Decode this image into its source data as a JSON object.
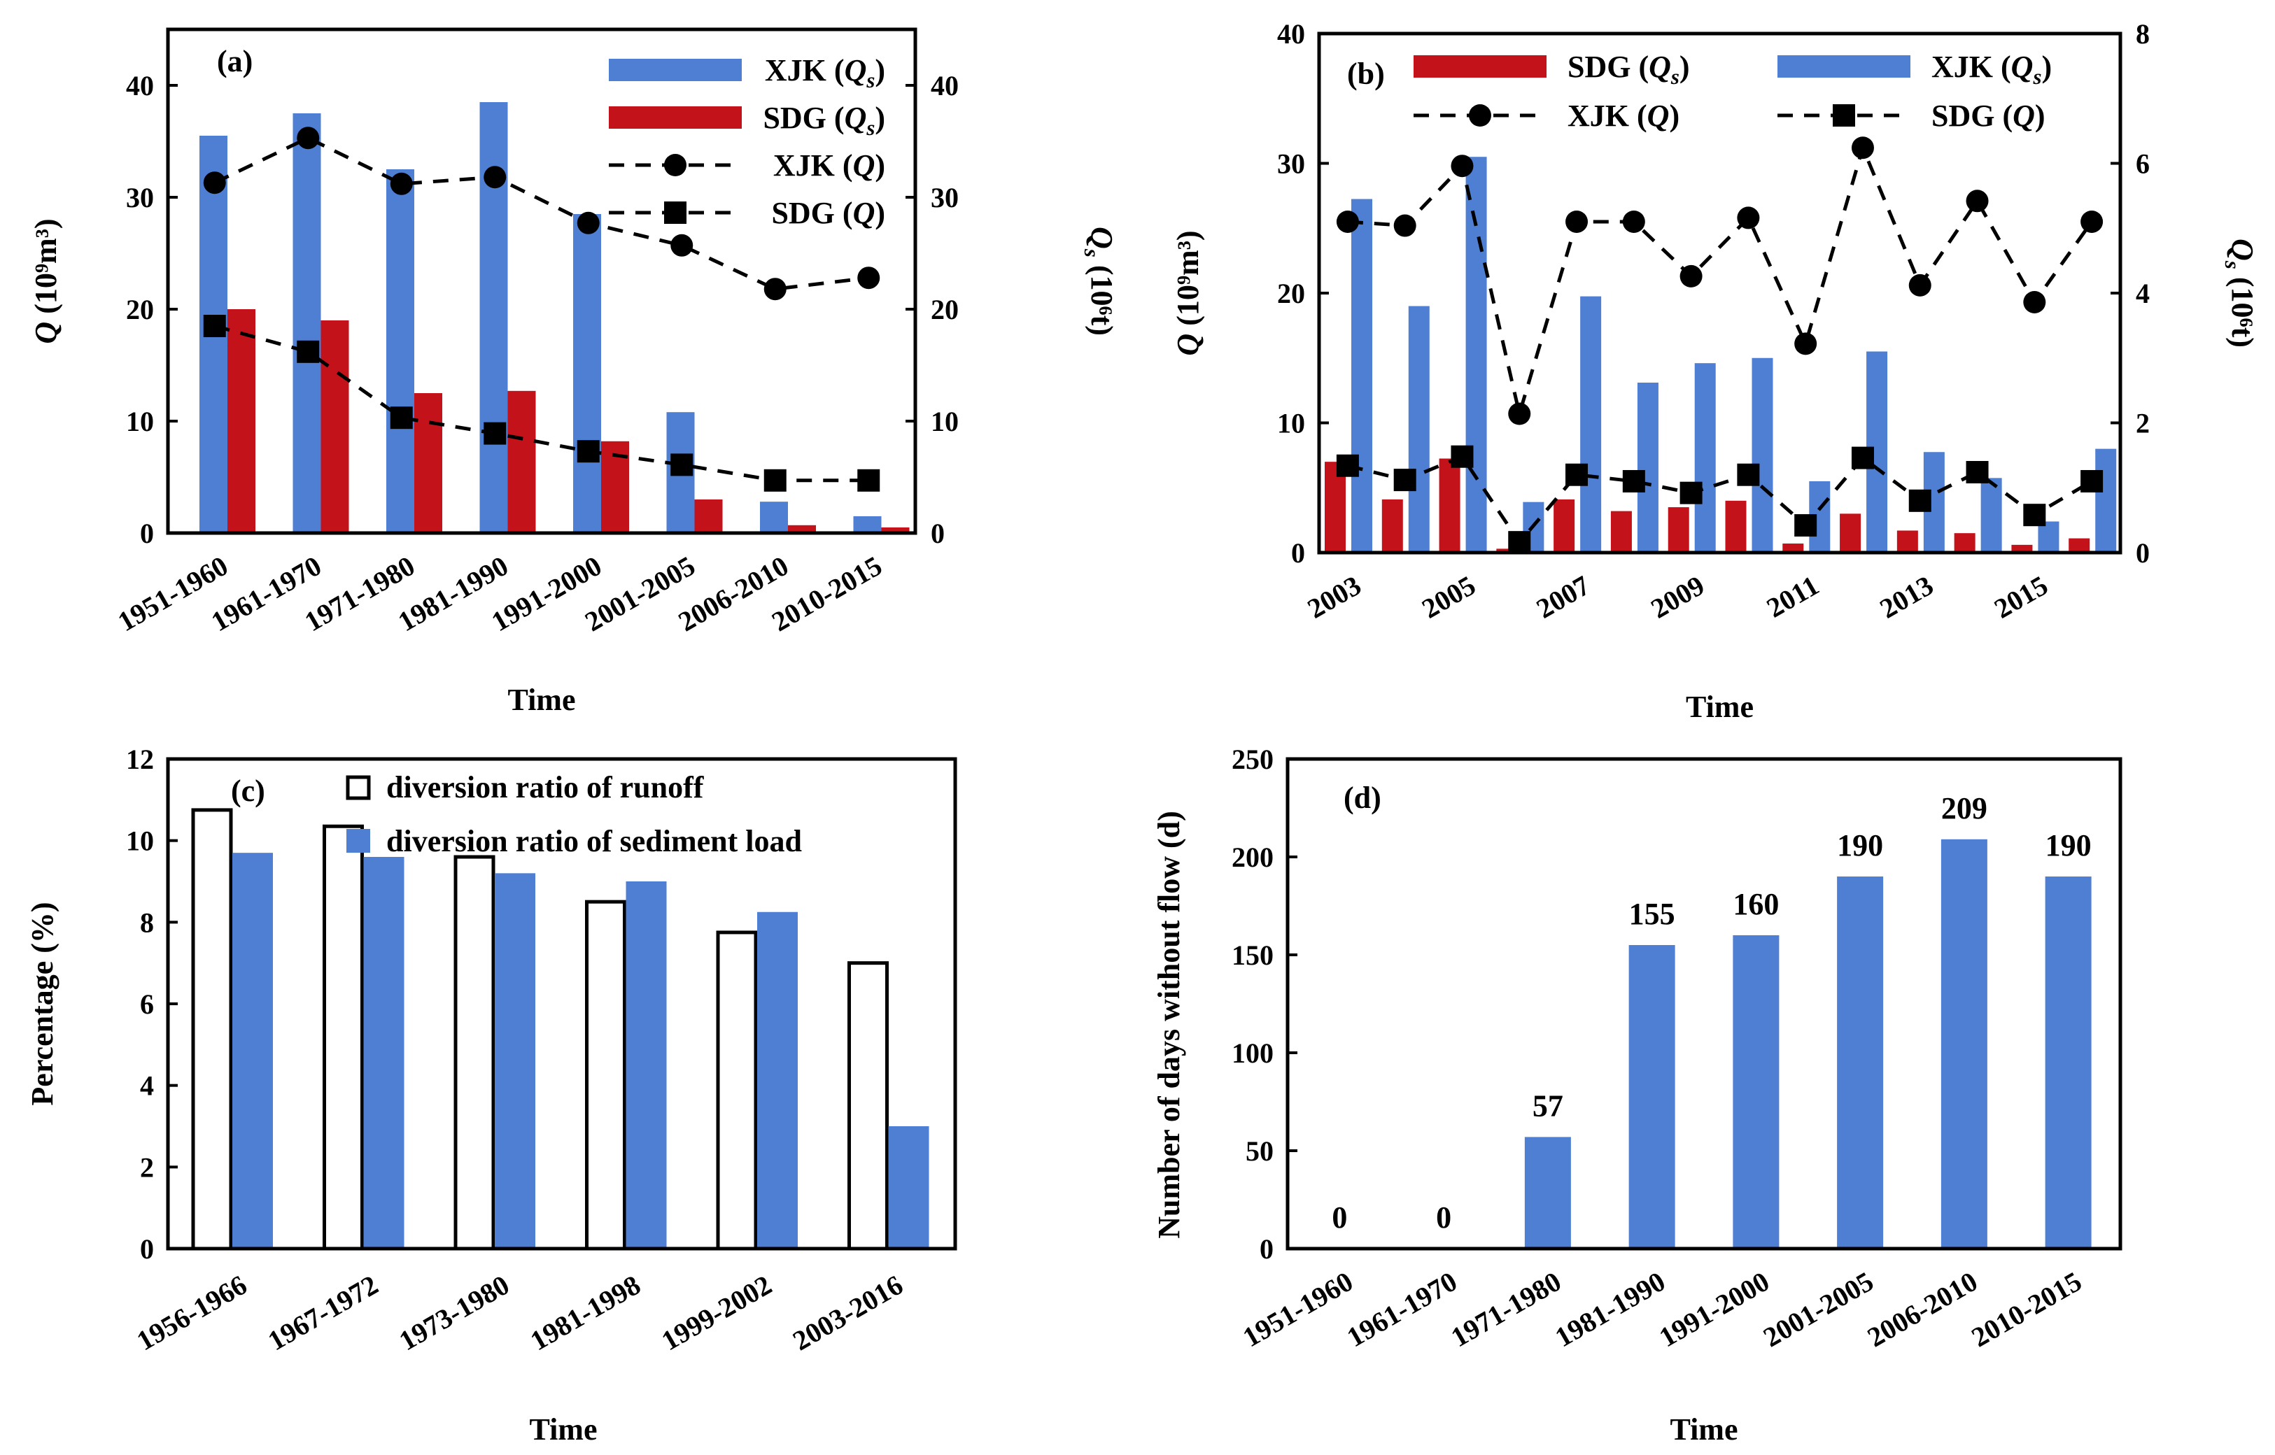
{
  "colors": {
    "blue": "#4f7fd2",
    "red": "#c4121a",
    "black": "#000000",
    "white": "#ffffff"
  },
  "chart_data": [
    {
      "panel": "a",
      "panel_label": "(a)",
      "type": "bar",
      "categories": [
        "1951-1960",
        "1961-1970",
        "1971-1980",
        "1981-1990",
        "1991-2000",
        "2001-2005",
        "2006-2010",
        "2010-2015"
      ],
      "xlabel": "Time",
      "ylabel": "Q (10⁹m³)",
      "ylabel_right": "Qs (10⁶t)",
      "ylim": [
        0,
        45
      ],
      "yticks": [
        0,
        10,
        20,
        30,
        40
      ],
      "ylim_right": [
        0,
        45
      ],
      "yticks_right": [
        0,
        10,
        20,
        30,
        40
      ],
      "bars": [
        {
          "name": "XJK (Qs)",
          "color": "#4f7fd2",
          "axis": "right",
          "values": [
            35.5,
            37.5,
            32.5,
            38.5,
            28.5,
            10.8,
            2.8,
            1.5
          ]
        },
        {
          "name": "SDG (Qs)",
          "color": "#c4121a",
          "axis": "right",
          "values": [
            20.0,
            19.0,
            12.5,
            12.7,
            8.2,
            3.0,
            0.7,
            0.5
          ]
        }
      ],
      "lines": [
        {
          "name": "XJK (Q)",
          "marker": "circle",
          "axis": "left",
          "values": [
            31.3,
            35.3,
            31.2,
            31.8,
            27.7,
            25.7,
            21.8,
            22.8
          ]
        },
        {
          "name": "SDG (Q)",
          "marker": "square",
          "axis": "left",
          "values": [
            18.5,
            16.2,
            10.3,
            8.9,
            7.3,
            6.1,
            4.7,
            4.7
          ]
        }
      ],
      "legend": [
        "XJK (Qs)",
        "SDG (Qs)",
        "XJK (Q)",
        "SDG (Q)"
      ],
      "legend_position": "top-right"
    },
    {
      "panel": "b",
      "panel_label": "(b)",
      "type": "bar",
      "categories": [
        "2003",
        "2004",
        "2005",
        "2006",
        "2007",
        "2008",
        "2009",
        "2010",
        "2011",
        "2012",
        "2013",
        "2014",
        "2015",
        "2016"
      ],
      "xtick_labels": [
        "2003",
        "",
        "2005",
        "",
        "2007",
        "",
        "2009",
        "",
        "2011",
        "",
        "2013",
        "",
        "2015",
        ""
      ],
      "xlabel": "Time",
      "ylabel": "Q (10⁹m³)",
      "ylabel_right": "Qs (10⁶t)",
      "ylim": [
        0,
        40
      ],
      "yticks": [
        0,
        10,
        20,
        30,
        40
      ],
      "ylim_right": [
        0,
        8
      ],
      "yticks_right": [
        0,
        2,
        4,
        6,
        8
      ],
      "bars": [
        {
          "name": "SDG (Qs)",
          "color": "#c4121a",
          "axis": "right",
          "values": [
            1.4,
            0.82,
            1.45,
            0.06,
            0.82,
            0.64,
            0.7,
            0.8,
            0.14,
            0.6,
            0.34,
            0.3,
            0.12,
            0.22
          ]
        },
        {
          "name": "XJK (Qs)",
          "color": "#4f7fd2",
          "axis": "right",
          "values": [
            5.45,
            3.8,
            6.1,
            0.78,
            3.95,
            2.62,
            2.92,
            3.0,
            1.1,
            3.1,
            1.55,
            1.15,
            0.48,
            1.6
          ]
        }
      ],
      "lines": [
        {
          "name": "XJK (Q)",
          "marker": "circle",
          "axis": "left",
          "values": [
            25.5,
            25.2,
            29.8,
            10.7,
            25.5,
            25.5,
            21.3,
            25.8,
            16.1,
            31.2,
            20.6,
            27.1,
            19.3,
            25.5
          ]
        },
        {
          "name": "SDG (Q)",
          "marker": "square",
          "axis": "left",
          "values": [
            6.7,
            5.6,
            7.4,
            0.8,
            6.0,
            5.5,
            4.6,
            6.0,
            2.1,
            7.3,
            4.0,
            6.2,
            2.9,
            5.5
          ]
        }
      ],
      "legend": [
        "SDG (Qs)",
        "XJK (Qs)",
        "XJK (Q)",
        "SDG (Q)"
      ],
      "legend_position": "top"
    },
    {
      "panel": "c",
      "panel_label": "(c)",
      "type": "bar",
      "categories": [
        "1956-1966",
        "1967-1972",
        "1973-1980",
        "1981-1998",
        "1999-2002",
        "2003-2016"
      ],
      "xlabel": "Time",
      "ylabel": "Percentage (%)",
      "ylim": [
        0,
        12
      ],
      "yticks": [
        0,
        2,
        4,
        6,
        8,
        10,
        12
      ],
      "series": [
        {
          "name": "diversion ratio of runoff",
          "style": "outline",
          "values": [
            10.75,
            10.35,
            9.6,
            8.5,
            7.75,
            7.0
          ]
        },
        {
          "name": "diversion ratio of sediment load",
          "color": "#4f7fd2",
          "values": [
            9.7,
            9.6,
            9.2,
            9.0,
            8.25,
            3.0
          ]
        }
      ],
      "legend": [
        "diversion ratio of runoff",
        "diversion ratio of sediment load"
      ],
      "legend_position": "top"
    },
    {
      "panel": "d",
      "panel_label": "(d)",
      "type": "bar",
      "categories": [
        "1951-1960",
        "1961-1970",
        "1971-1980",
        "1981-1990",
        "1991-2000",
        "2001-2005",
        "2006-2010",
        "2010-2015"
      ],
      "xlabel": "Time",
      "ylabel": "Number of days without flow (d)",
      "ylim": [
        0,
        250
      ],
      "yticks": [
        0,
        50,
        100,
        150,
        200,
        250
      ],
      "values": [
        0,
        0,
        57,
        155,
        160,
        190,
        209,
        190
      ],
      "data_labels": [
        "0",
        "0",
        "57",
        "155",
        "160",
        "190",
        "209",
        "190"
      ],
      "color": "#4f7fd2"
    }
  ]
}
